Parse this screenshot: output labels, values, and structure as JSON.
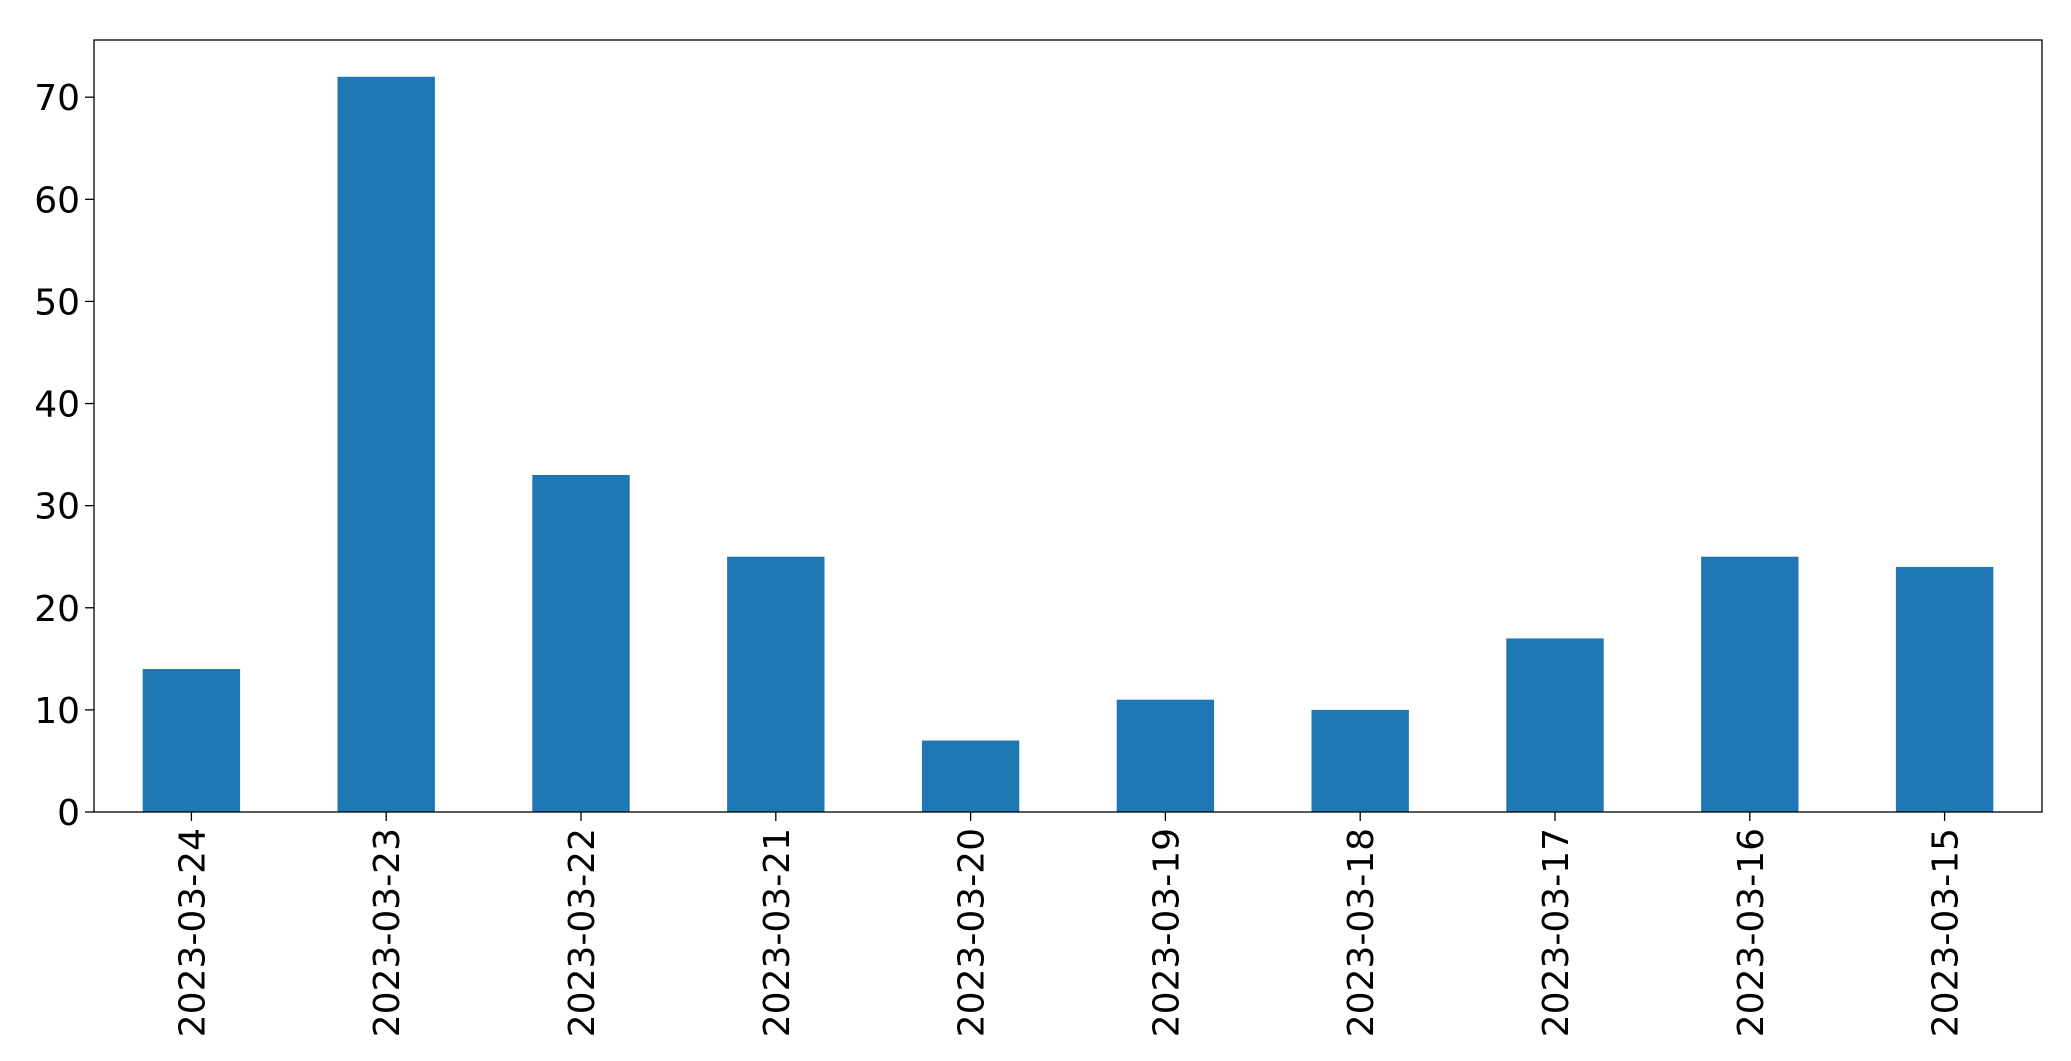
{
  "chart_data": {
    "type": "bar",
    "categories": [
      "2023-03-24",
      "2023-03-23",
      "2023-03-22",
      "2023-03-21",
      "2023-03-20",
      "2023-03-19",
      "2023-03-18",
      "2023-03-17",
      "2023-03-16",
      "2023-03-15"
    ],
    "values": [
      14,
      72,
      33,
      25,
      7,
      11,
      10,
      17,
      25,
      24
    ],
    "color": "#1f77b4",
    "ylim": [
      0,
      75.6
    ],
    "yticks": [
      0,
      10,
      20,
      30,
      40,
      50,
      60,
      70
    ],
    "grid": false
  }
}
